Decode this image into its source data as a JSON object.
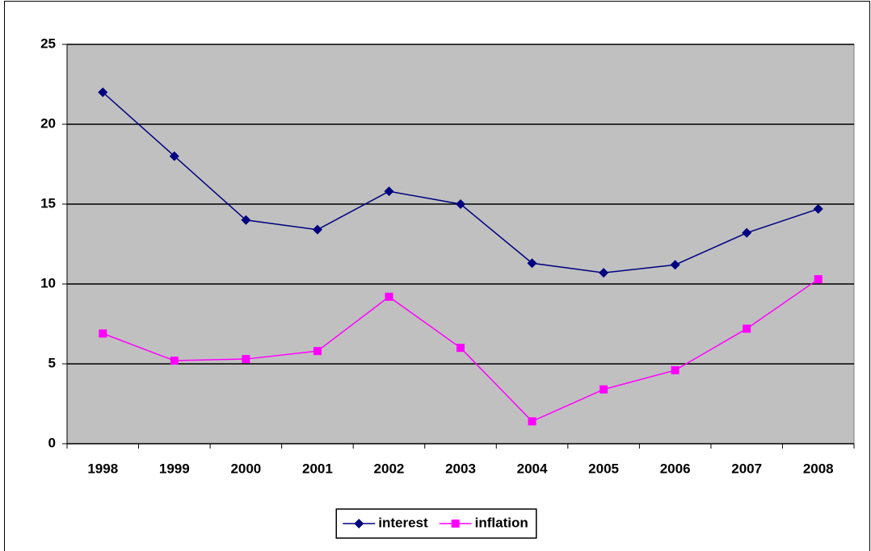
{
  "chart_data": {
    "type": "line",
    "categories": [
      "1998",
      "1999",
      "2000",
      "2001",
      "2002",
      "2003",
      "2004",
      "2005",
      "2006",
      "2007",
      "2008"
    ],
    "series": [
      {
        "name": "interest",
        "color": "#000080",
        "marker": "diamond",
        "values": [
          22,
          18,
          14,
          13.4,
          15.8,
          15,
          11.3,
          10.7,
          11.2,
          13.2,
          14.7
        ]
      },
      {
        "name": "inflation",
        "color": "#ff00ff",
        "marker": "square",
        "values": [
          6.9,
          5.2,
          5.3,
          5.8,
          9.2,
          6,
          1.4,
          3.4,
          4.6,
          7.2,
          10.3
        ]
      }
    ],
    "ylim": [
      0,
      25
    ],
    "yticks": [
      0,
      5,
      10,
      15,
      20,
      25
    ],
    "grid": true,
    "legend": "bottom",
    "plot_background": "#c0c0c0"
  }
}
